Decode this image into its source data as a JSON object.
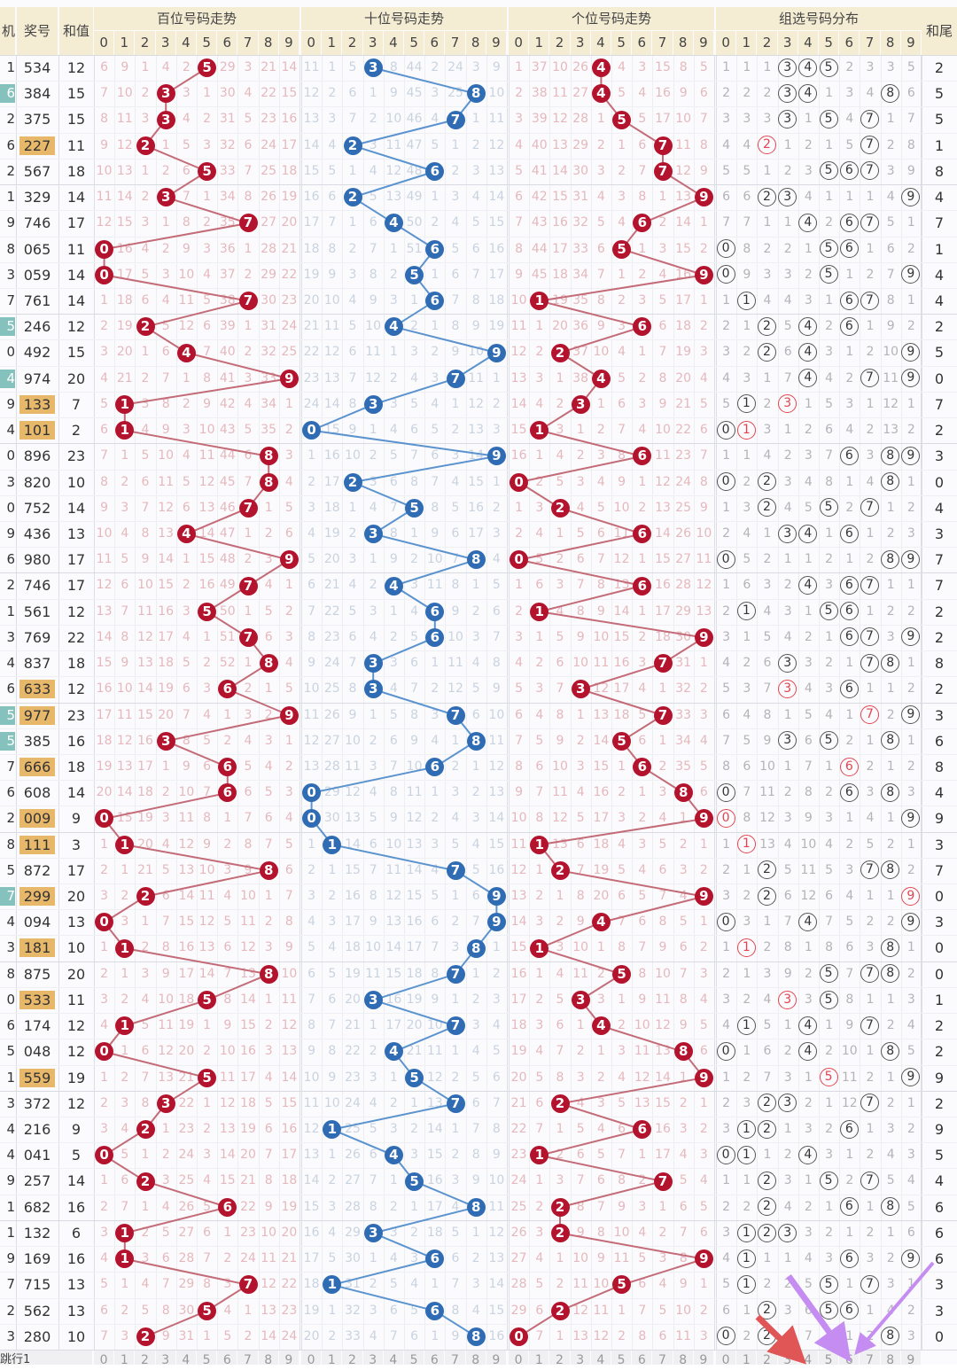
{
  "headers": {
    "period": "机",
    "number": "奖号",
    "sum": "和值",
    "sections": [
      "百位号码走势",
      "十位号码走势",
      "个位号码走势",
      "组选号码分布"
    ],
    "tail": "和尾",
    "digits": [
      "0",
      "1",
      "2",
      "3",
      "4",
      "5",
      "6",
      "7",
      "8",
      "9"
    ]
  },
  "footer": {
    "label": "跳行1"
  },
  "colors": {
    "header_bg": "#f4ecd3",
    "red_ball": "#b3132d",
    "blue_ball": "#2f6cb3",
    "red_line": "#c46b78",
    "blue_line": "#5b93cf",
    "pair_ring": "#e0454f",
    "number_highlight": "#e8b86a",
    "period_highlight": "#86c2bd",
    "arrow_red": "#e05555",
    "arrow_purple": "#c58cf2"
  },
  "initial_omission": [
    [
      6,
      9,
      1,
      4,
      2,
      0,
      29,
      3,
      21,
      14
    ],
    [
      11,
      1,
      5,
      0,
      8,
      44,
      2,
      24,
      3,
      9
    ],
    [
      1,
      37,
      10,
      26,
      0,
      4,
      3,
      15,
      8,
      5
    ],
    [
      1,
      1,
      1,
      0,
      0,
      0,
      2,
      3,
      3,
      5
    ]
  ],
  "rows": [
    {
      "p": "1",
      "n": "534",
      "s": "12",
      "t": "2"
    },
    {
      "p": "6",
      "n": "384",
      "s": "15",
      "t": "5",
      "hl": true
    },
    {
      "p": "2",
      "n": "375",
      "s": "15",
      "t": "5"
    },
    {
      "p": "6",
      "n": "227",
      "s": "11",
      "t": "1"
    },
    {
      "p": "2",
      "n": "567",
      "s": "18",
      "t": "8"
    },
    {
      "p": "1",
      "n": "329",
      "s": "14",
      "t": "4"
    },
    {
      "p": "9",
      "n": "746",
      "s": "17",
      "t": "7"
    },
    {
      "p": "8",
      "n": "065",
      "s": "11",
      "t": "1"
    },
    {
      "p": "3",
      "n": "059",
      "s": "14",
      "t": "4"
    },
    {
      "p": "7",
      "n": "761",
      "s": "14",
      "t": "4"
    },
    {
      "p": "5",
      "n": "246",
      "s": "12",
      "t": "2",
      "hl": true
    },
    {
      "p": "0",
      "n": "492",
      "s": "15",
      "t": "5"
    },
    {
      "p": "4",
      "n": "974",
      "s": "20",
      "t": "0",
      "hl": true
    },
    {
      "p": "9",
      "n": "133",
      "s": "7",
      "t": "7"
    },
    {
      "p": "4",
      "n": "101",
      "s": "2",
      "t": "2"
    },
    {
      "p": "0",
      "n": "896",
      "s": "23",
      "t": "3"
    },
    {
      "p": "3",
      "n": "820",
      "s": "10",
      "t": "0"
    },
    {
      "p": "0",
      "n": "752",
      "s": "14",
      "t": "4"
    },
    {
      "p": "9",
      "n": "436",
      "s": "13",
      "t": "3"
    },
    {
      "p": "6",
      "n": "980",
      "s": "17",
      "t": "7"
    },
    {
      "p": "2",
      "n": "746",
      "s": "17",
      "t": "7"
    },
    {
      "p": "1",
      "n": "561",
      "s": "12",
      "t": "2"
    },
    {
      "p": "3",
      "n": "769",
      "s": "22",
      "t": "2"
    },
    {
      "p": "4",
      "n": "837",
      "s": "18",
      "t": "8"
    },
    {
      "p": "6",
      "n": "633",
      "s": "12",
      "t": "2"
    },
    {
      "p": "5",
      "n": "977",
      "s": "23",
      "t": "3",
      "hl": true
    },
    {
      "p": "5",
      "n": "385",
      "s": "16",
      "t": "6",
      "hl": true
    },
    {
      "p": "7",
      "n": "666",
      "s": "18",
      "t": "8"
    },
    {
      "p": "6",
      "n": "608",
      "s": "14",
      "t": "4"
    },
    {
      "p": "2",
      "n": "009",
      "s": "9",
      "t": "9"
    },
    {
      "p": "8",
      "n": "111",
      "s": "3",
      "t": "3"
    },
    {
      "p": "5",
      "n": "872",
      "s": "17",
      "t": "7"
    },
    {
      "p": "7",
      "n": "299",
      "s": "20",
      "t": "0",
      "hl": true
    },
    {
      "p": "4",
      "n": "094",
      "s": "13",
      "t": "3"
    },
    {
      "p": "3",
      "n": "181",
      "s": "10",
      "t": "0"
    },
    {
      "p": "8",
      "n": "875",
      "s": "20",
      "t": "0"
    },
    {
      "p": "0",
      "n": "533",
      "s": "11",
      "t": "1"
    },
    {
      "p": "6",
      "n": "174",
      "s": "12",
      "t": "2"
    },
    {
      "p": "5",
      "n": "048",
      "s": "12",
      "t": "2"
    },
    {
      "p": "1",
      "n": "559",
      "s": "19",
      "t": "9"
    },
    {
      "p": "3",
      "n": "372",
      "s": "12",
      "t": "2"
    },
    {
      "p": "4",
      "n": "216",
      "s": "9",
      "t": "9"
    },
    {
      "p": "4",
      "n": "041",
      "s": "5",
      "t": "5"
    },
    {
      "p": "9",
      "n": "257",
      "s": "14",
      "t": "4"
    },
    {
      "p": "1",
      "n": "682",
      "s": "16",
      "t": "6"
    },
    {
      "p": "1",
      "n": "132",
      "s": "6",
      "t": "6"
    },
    {
      "p": "9",
      "n": "169",
      "s": "16",
      "t": "6"
    },
    {
      "p": "7",
      "n": "715",
      "s": "13",
      "t": "3"
    },
    {
      "p": "2",
      "n": "562",
      "s": "13",
      "t": "3"
    },
    {
      "p": "3",
      "n": "280",
      "s": "10",
      "t": "0"
    }
  ]
}
